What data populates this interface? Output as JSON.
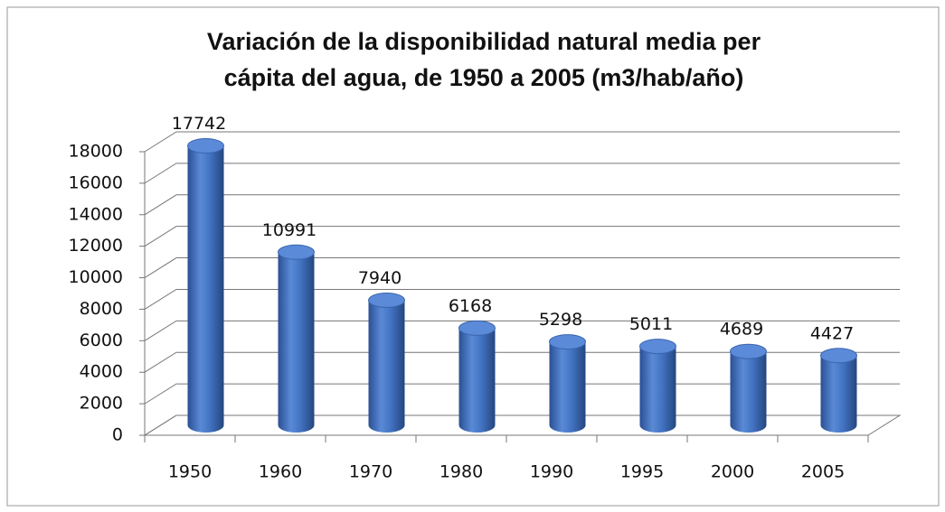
{
  "chart_data": {
    "type": "bar3d",
    "title": "Variación de la disponibilidad natural media per cápita del agua, de 1950 a 2005 (m3/hab/año)",
    "categories": [
      "1950",
      "1960",
      "1970",
      "1980",
      "1990",
      "1995",
      "2000",
      "2005"
    ],
    "values": [
      17742,
      10991,
      7940,
      6168,
      5298,
      5011,
      4689,
      4427
    ],
    "color": "#3f6fbf",
    "ylim": [
      0,
      18000
    ],
    "yticks": [
      0,
      2000,
      4000,
      6000,
      8000,
      10000,
      12000,
      14000,
      16000,
      18000
    ],
    "grid": true
  }
}
